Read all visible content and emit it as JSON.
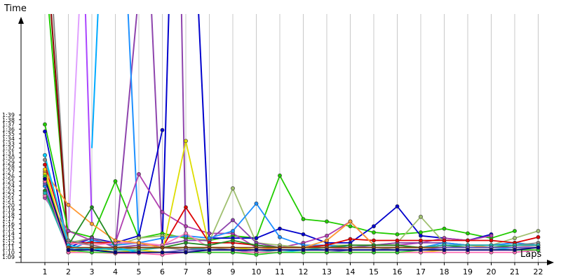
{
  "chart_data": {
    "type": "line",
    "xlabel": "Laps",
    "ylabel": "Time",
    "x": [
      1,
      2,
      3,
      4,
      5,
      6,
      7,
      8,
      9,
      10,
      11,
      12,
      13,
      14,
      15,
      16,
      17,
      18,
      19,
      20,
      21,
      22
    ],
    "y_tick_labels": [
      "1:09",
      "1:10",
      "1:11",
      "1:12",
      "1:13",
      "1:14",
      "1:15",
      "1:16",
      "1:17",
      "1:18",
      "1:19",
      "1:20",
      "1:21",
      "1:22",
      "1:23",
      "1:24",
      "1:25",
      "1:26",
      "1:27",
      "1:28",
      "1:29",
      "1:30",
      "1:31",
      "1:32",
      "1:33",
      "1:34",
      "1:35",
      "1:36",
      "1:37",
      "1:38",
      "1:39"
    ],
    "ylim_seconds": [
      68,
      120
    ],
    "grid": "vertical",
    "series": [
      {
        "color": "#22cc00",
        "values": [
          97,
          74.5,
          73.2,
          85,
          73,
          74,
          73,
          72.5,
          73.5,
          73,
          86.2,
          77,
          76.5,
          75.5,
          74.2,
          73.8,
          74.2,
          75,
          74,
          73,
          74.5,
          null
        ]
      },
      {
        "color": "#0000cc",
        "values": [
          95.5,
          71,
          73,
          72,
          73.5,
          95.8,
          null,
          73,
          73,
          73,
          75,
          73.8,
          72,
          72,
          75.5,
          79.7,
          73.5,
          73,
          72.5,
          73.8,
          null,
          null
        ]
      },
      {
        "color": "#b040b0",
        "values": [
          81.5,
          74.5,
          72.5,
          72,
          86.5,
          78.5,
          75.5,
          74,
          74,
          71,
          71,
          72,
          73.5,
          76.5,
          71.5,
          71.5,
          72,
          73,
          72.5,
          73.5,
          null,
          null
        ]
      },
      {
        "color": "#a0c070",
        "values": [
          85,
          72,
          73,
          71.5,
          73,
          73.5,
          73.3,
          72.3,
          83.5,
          72,
          71.5,
          71,
          71.5,
          71.5,
          71.5,
          72,
          77.5,
          72,
          71.5,
          71.5,
          73,
          74.5
        ]
      },
      {
        "color": "#8e44ad",
        "values": [
          84,
          71.5,
          73,
          71,
          71.5,
          71.5,
          72.5,
          72.5,
          76.8,
          72,
          71,
          71,
          71,
          71,
          71.5,
          72,
          72,
          72,
          71.5,
          71.5,
          72,
          71.5
        ]
      },
      {
        "color": "#1e90ff",
        "values": [
          84,
          70.5,
          72.5,
          71.5,
          72,
          73,
          73.5,
          73,
          74.5,
          80.3,
          73.2,
          71.5,
          71.5,
          71,
          71,
          71,
          71,
          72,
          71.5,
          71.5,
          72,
          71.5
        ]
      },
      {
        "color": "#dd0000",
        "values": [
          88.5,
          72,
          72,
          72,
          72,
          71,
          79.5,
          72,
          72,
          71.5,
          71,
          71,
          71.5,
          72.8,
          72.5,
          72.5,
          72.5,
          72.5,
          72.5,
          72.5,
          72,
          73.2
        ]
      },
      {
        "color": "#ff80c0",
        "values": [
          82,
          72,
          71.5,
          72,
          72,
          71.5,
          74,
          71,
          71,
          70.5,
          70.5,
          70.5,
          70.5,
          71,
          71,
          71,
          71,
          71.5,
          71,
          71,
          71,
          71.5
        ]
      },
      {
        "color": "#ff9933",
        "values": [
          87,
          80,
          76,
          72.5,
          72,
          71,
          71,
          71,
          71,
          70.5,
          71,
          71,
          72.5,
          76.5,
          71.5,
          71.5,
          71,
          71.5,
          71.5,
          71,
          71,
          71
        ]
      },
      {
        "color": "#dddd00",
        "values": [
          86.5,
          70,
          71,
          70,
          70.5,
          70,
          93.5,
          71,
          71,
          70.5,
          70.5,
          70.5,
          70.5,
          70.5,
          70.5,
          70.5,
          70.5,
          70.5,
          70.5,
          70.5,
          70.5,
          71
        ]
      },
      {
        "color": "#888888",
        "values": [
          89.5,
          72.5,
          71.5,
          70.5,
          71,
          71,
          70.5,
          71,
          70.5,
          70.5,
          70.5,
          70.5,
          70.5,
          70.5,
          70.5,
          71,
          71,
          71,
          71,
          71,
          71.5,
          72
        ]
      },
      {
        "color": "#228b22",
        "values": [
          83,
          71.5,
          79.5,
          71,
          71,
          71,
          72,
          71.5,
          72.5,
          71.5,
          71,
          71,
          71,
          71.5,
          71.5,
          71.5,
          71,
          71.5,
          71,
          71,
          71.5,
          71.5
        ]
      },
      {
        "color": "#20b2aa",
        "values": [
          82.5,
          70.5,
          71,
          70.5,
          70.5,
          71,
          71,
          70.5,
          70.5,
          70,
          70.5,
          70.5,
          71,
          71,
          71,
          71,
          71,
          71.5,
          71.5,
          71.5,
          71.5,
          71.5
        ]
      },
      {
        "color": "#00ccff",
        "values": [
          90.5,
          71.5,
          70.5,
          71,
          70,
          70,
          70,
          70,
          70,
          70,
          70,
          70.5,
          70.5,
          70.5,
          70.5,
          70.5,
          70.5,
          70.5,
          70.5,
          70.5,
          71,
          71
        ]
      },
      {
        "color": "#8b4513",
        "values": [
          85.5,
          71,
          71,
          71,
          71,
          71,
          71,
          71,
          71,
          71,
          71,
          71,
          71,
          71,
          71,
          71,
          71,
          71,
          71,
          71,
          71,
          71
        ]
      },
      {
        "color": "#6a5acd",
        "values": [
          84.5,
          70.5,
          70.5,
          70,
          70,
          70,
          70.5,
          70.5,
          70.5,
          70,
          70,
          70,
          70,
          70.5,
          70.5,
          70.5,
          70.5,
          71,
          71,
          71,
          71,
          71
        ]
      },
      {
        "color": "#ffcc00",
        "values": [
          87.5,
          70,
          70,
          69.8,
          70,
          70,
          70,
          70,
          70,
          70,
          70,
          70,
          70,
          70,
          70,
          70,
          70,
          70.5,
          70.5,
          70.5,
          70.5,
          70.5
        ]
      },
      {
        "color": "#ff69b4",
        "values": [
          85,
          70,
          70,
          69.8,
          69.8,
          69.5,
          70,
          70,
          70,
          70,
          70,
          70,
          70,
          70,
          70,
          70,
          70,
          70,
          70,
          70,
          70,
          70.5
        ]
      },
      {
        "color": "#32cd32",
        "values": [
          86,
          70.5,
          70,
          70,
          70,
          70,
          70,
          70,
          70,
          69.5,
          70,
          70,
          70,
          70,
          70,
          70,
          70.5,
          70.5,
          70.5,
          70.5,
          70.5,
          70.5
        ]
      },
      {
        "color": "#000080",
        "values": [
          85.5,
          70.5,
          70.5,
          70,
          70,
          70,
          70,
          70.5,
          70.5,
          70.5,
          70.5,
          70.5,
          70.5,
          70.5,
          70.5,
          70.5,
          70.5,
          70.5,
          70.5,
          70.5,
          70.5,
          71
        ]
      }
    ],
    "spikes": [
      {
        "color": "#e0a0ff",
        "from": [
          2,
          74.5
        ],
        "to": [
          2.5,
          125
        ]
      },
      {
        "color": "#aa44ff",
        "from": [
          3,
          76
        ],
        "to": [
          2.7,
          125
        ]
      },
      {
        "color": "#00aaff",
        "from": [
          3,
          92
        ],
        "to": [
          3.3,
          125
        ]
      },
      {
        "color": "#8e44ad",
        "from": [
          4,
          71
        ],
        "to": [
          5,
          125
        ]
      },
      {
        "color": "#1e90ff",
        "from": [
          5,
          72
        ],
        "to": [
          4.5,
          125
        ]
      },
      {
        "color": "#8e44ad",
        "from": [
          6,
          71
        ],
        "to": [
          5.5,
          125
        ]
      },
      {
        "color": "#0000cc",
        "from": [
          6,
          72
        ],
        "to": [
          6.3,
          125
        ]
      },
      {
        "color": "#8e44ad",
        "from": [
          7,
          71
        ],
        "to": [
          6.8,
          125
        ]
      },
      {
        "color": "#0000cc",
        "from": [
          8,
          72
        ],
        "to": [
          7.5,
          125
        ]
      },
      {
        "color": "#22cc00",
        "from": [
          2,
          72
        ],
        "to": [
          1.1,
          125
        ]
      },
      {
        "color": "#888888",
        "from": [
          2,
          71
        ],
        "to": [
          1.3,
          125
        ]
      },
      {
        "color": "#8b0000",
        "from": [
          2,
          70.5
        ],
        "to": [
          1.2,
          125
        ]
      }
    ]
  }
}
